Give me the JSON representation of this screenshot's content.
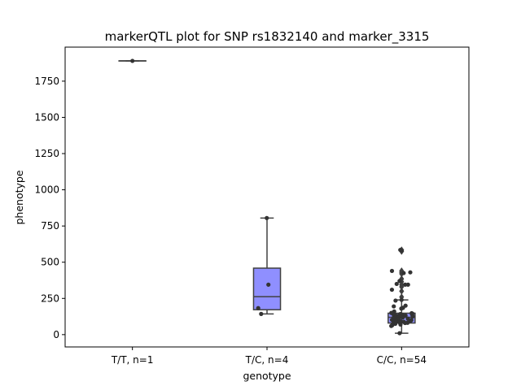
{
  "chart_data": {
    "type": "box",
    "title": "markerQTL plot for SNP rs1832140 and marker_3315",
    "xlabel": "genotype",
    "ylabel": "phenotype",
    "ylim": [
      -85,
      1985
    ],
    "yticks": [
      0,
      250,
      500,
      750,
      1000,
      1250,
      1500,
      1750
    ],
    "categories": [
      "T/T, n=1",
      "T/C, n=4",
      "C/C, n=54"
    ],
    "colors": {
      "box": "#8F8FFF",
      "line": "#404040",
      "point": "#333333",
      "frame": "#000000"
    },
    "boxes": [
      {
        "category": "T/T, n=1",
        "q1": 1890,
        "median": 1890,
        "q3": 1890,
        "whisker_low": 1890,
        "whisker_high": 1890,
        "fliers": []
      },
      {
        "category": "T/C, n=4",
        "q1": 172,
        "median": 262,
        "q3": 459,
        "whisker_low": 143,
        "whisker_high": 805,
        "fliers": []
      },
      {
        "category": "C/C, n=54",
        "q1": 80,
        "median": 120,
        "q3": 148,
        "whisker_low": 10,
        "whisker_high": 240,
        "fliers": [
          260,
          300,
          330,
          345,
          365,
          385,
          420,
          430,
          440,
          575,
          585
        ]
      }
    ],
    "points": [
      {
        "category": "T/T, n=1",
        "values": [
          1890
        ]
      },
      {
        "category": "T/C, n=4",
        "values": [
          805,
          345,
          183,
          143
        ]
      },
      {
        "category": "C/C, n=54",
        "values": [
          585,
          580,
          440,
          430,
          425,
          370,
          350,
          345,
          345,
          310,
          240,
          235,
          200,
          195,
          185,
          180,
          160,
          150,
          148,
          145,
          145,
          142,
          140,
          140,
          138,
          135,
          132,
          130,
          128,
          125,
          122,
          120,
          118,
          115,
          112,
          110,
          108,
          105,
          102,
          100,
          98,
          95,
          92,
          90,
          88,
          85,
          82,
          80,
          78,
          75,
          70,
          65,
          60,
          10
        ]
      }
    ]
  }
}
